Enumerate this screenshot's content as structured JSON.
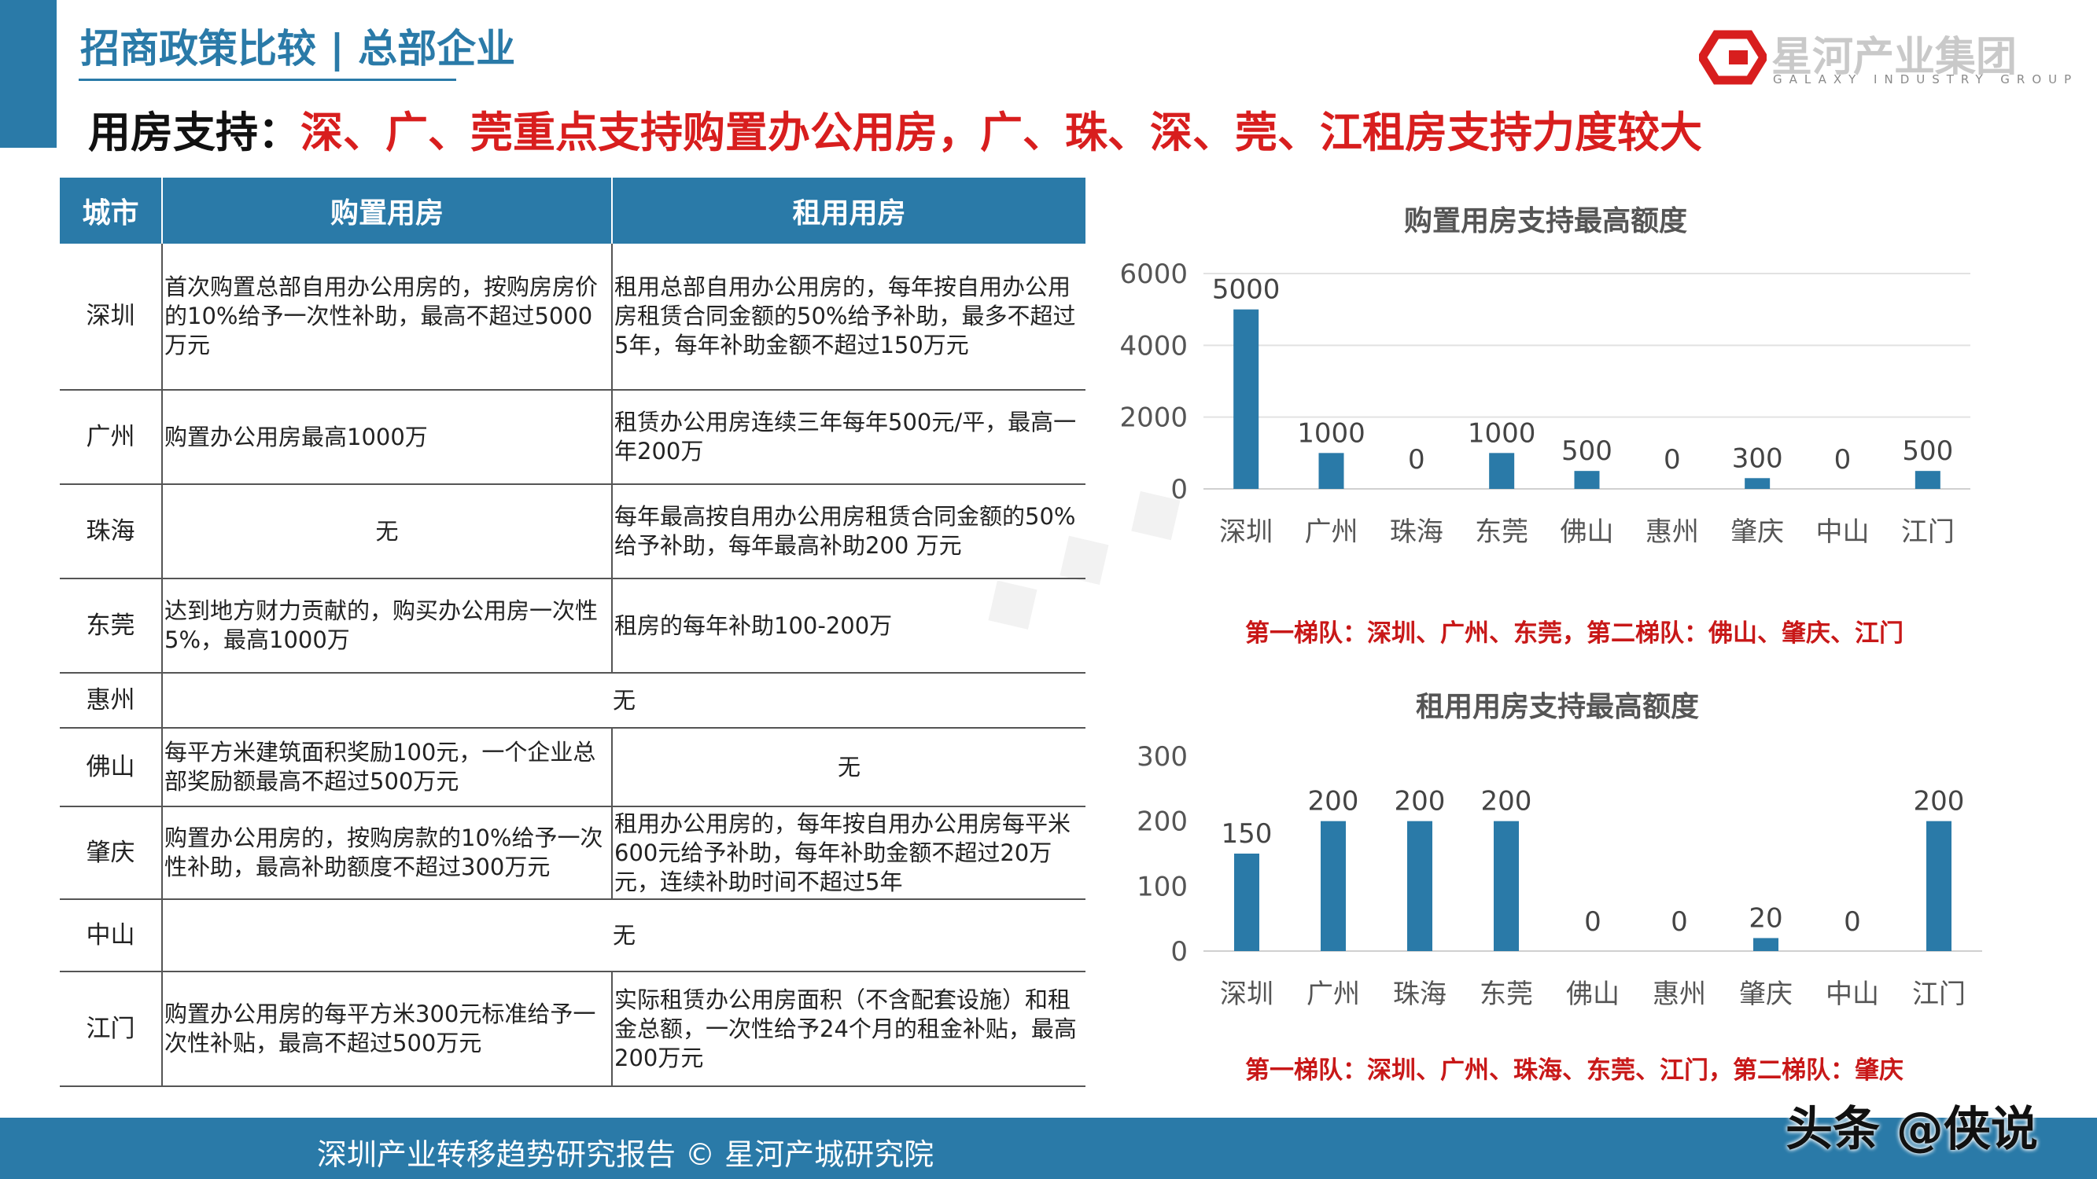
{
  "header": {
    "section_title": "招商政策比较 | 总部企业",
    "headline_prefix": "用房支持：",
    "headline_body": "深、广、莞重点支持购置办公用房，广、珠、深、莞、江租房支持力度较大"
  },
  "logo": {
    "name": "星河产业集团",
    "subtitle": "GALAXY INDUSTRY GROUP",
    "color": "#d81e1e"
  },
  "table": {
    "headers": [
      "城市",
      "购置用房",
      "租用用房"
    ],
    "rows": [
      {
        "city": "深圳",
        "purchase": "首次购置总部自用办公用房的，按购房房价的10%给予一次性补助，最高不超过5000万元",
        "rent": "租用总部自用办公用房的，每年按自用办公用房租赁合同金额的50%给予补助，最多不超过5年，每年补助金额不超过150万元"
      },
      {
        "city": "广州",
        "purchase": "购置办公用房最高1000万",
        "rent": "租赁办公用房连续三年每年500元/平，最高一年200万"
      },
      {
        "city": "珠海",
        "purchase": "无",
        "rent": "每年最高按自用办公用房租赁合同金额的50%给予补助，每年最高补助200 万元"
      },
      {
        "city": "东莞",
        "purchase": "达到地方财力贡献的，购买办公用房一次性5%，最高1000万",
        "rent": "租房的每年补助100-200万"
      },
      {
        "city": "惠州",
        "merged": "无"
      },
      {
        "city": "佛山",
        "purchase": "每平方米建筑面积奖励100元，一个企业总部奖励额最高不超过500万元",
        "rent": "无"
      },
      {
        "city": "肇庆",
        "purchase": "购置办公用房的，按购房款的10%给予一次性补助，最高补助额度不超过300万元",
        "rent": "租用办公用房的，每年按自用办公用房每平米600元给予补助，每年补助金额不超过20万元，连续补助时间不超过5年"
      },
      {
        "city": "中山",
        "merged": "无"
      },
      {
        "city": "江门",
        "purchase": "购置办公用房的每平方米300元标准给予一次性补贴，最高不超过500万元",
        "rent": "实际租赁办公用房面积（不含配套设施）和租金总额，一次性给予24个月的租金补贴，最高200万元"
      }
    ]
  },
  "chart_data": [
    {
      "type": "bar",
      "title": "购置用房支持最高额度",
      "categories": [
        "深圳",
        "广州",
        "珠海",
        "东莞",
        "佛山",
        "惠州",
        "肇庆",
        "中山",
        "江门"
      ],
      "values": [
        5000,
        1000,
        0,
        1000,
        500,
        0,
        300,
        0,
        500
      ],
      "yticks": [
        0,
        2000,
        4000,
        6000
      ],
      "ylim": [
        0,
        6000
      ],
      "grid": true,
      "color": "#2a7aa8",
      "note": "第一梯队：深圳、广州、东莞，第二梯队：佛山、肇庆、江门"
    },
    {
      "type": "bar",
      "title": "租用用房支持最高额度",
      "categories": [
        "深圳",
        "广州",
        "珠海",
        "东莞",
        "佛山",
        "惠州",
        "肇庆",
        "中山",
        "江门"
      ],
      "values": [
        150,
        200,
        200,
        200,
        0,
        0,
        20,
        0,
        200
      ],
      "yticks": [
        0,
        100,
        200,
        300
      ],
      "ylim": [
        0,
        300
      ],
      "grid": false,
      "color": "#2a7aa8",
      "note": "第一梯队：深圳、广州、珠海、东莞、江门，第二梯队：肇庆"
    }
  ],
  "footer": {
    "text": "深圳产业转移趋势研究报告 © 星河产城研究院",
    "watermark": "头条 @侠说"
  }
}
